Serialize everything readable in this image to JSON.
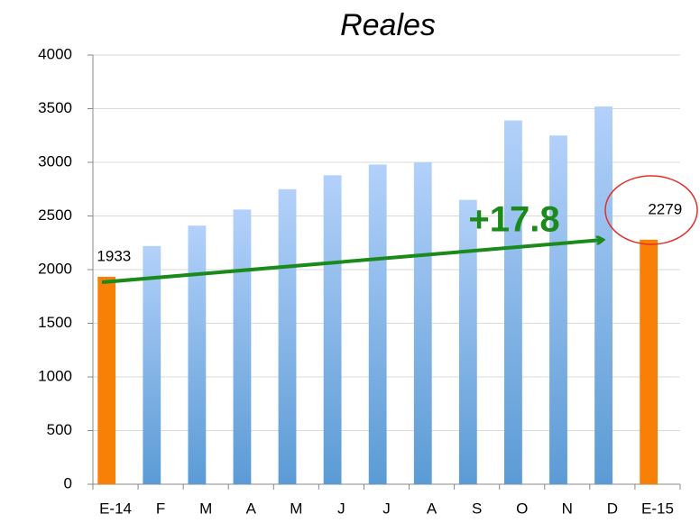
{
  "chart_data": {
    "type": "bar",
    "title": "Reales",
    "categories": [
      "E-14",
      "F",
      "M",
      "A",
      "M",
      "J",
      "J",
      "A",
      "S",
      "O",
      "N",
      "D",
      "E-15"
    ],
    "values": [
      1933,
      2220,
      2410,
      2560,
      2750,
      2880,
      2980,
      3000,
      2650,
      3390,
      3250,
      3520,
      2279
    ],
    "color": "#5b9bd5",
    "colors": [
      "#f98007",
      "#5b9bd5",
      "#5b9bd5",
      "#5b9bd5",
      "#5b9bd5",
      "#5b9bd5",
      "#5b9bd5",
      "#5b9bd5",
      "#5b9bd5",
      "#5b9bd5",
      "#5b9bd5",
      "#5b9bd5",
      "#f98007"
    ],
    "ylim": [
      0,
      4000
    ],
    "yticks": [
      0,
      500,
      1000,
      1500,
      2000,
      2500,
      3000,
      3500,
      4000
    ],
    "grid": true,
    "annotation": "+17.8"
  }
}
